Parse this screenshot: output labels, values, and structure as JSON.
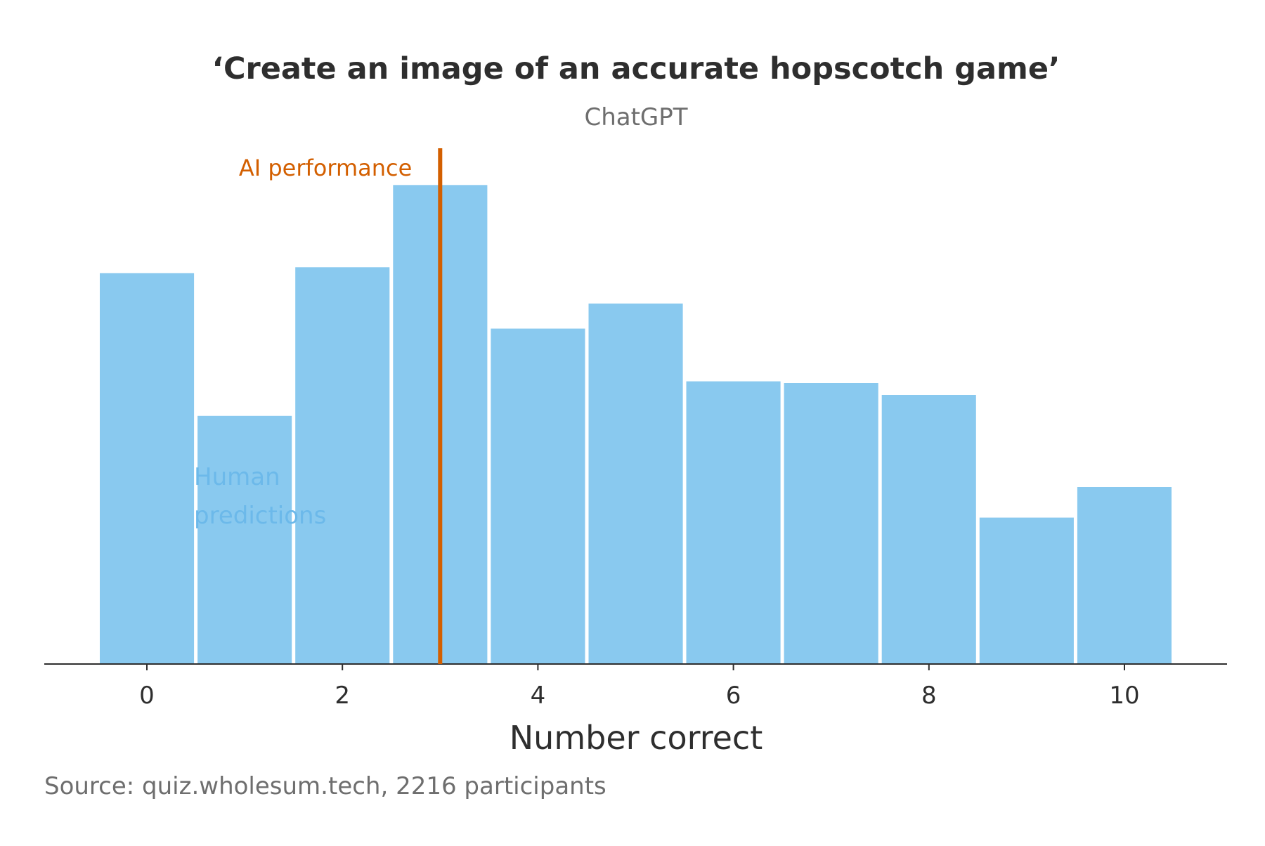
{
  "chart_data": {
    "type": "bar",
    "title": "‘Create an image of an accurate hopscotch game’",
    "subtitle": "ChatGPT",
    "xlabel": "Number correct",
    "ylabel": "",
    "categories": [
      0,
      1,
      2,
      3,
      4,
      5,
      6,
      7,
      8,
      9,
      10
    ],
    "series": [
      {
        "name": "Human predictions",
        "values": [
          0.1236,
          0.0785,
          0.1255,
          0.1515,
          0.1061,
          0.114,
          0.0894,
          0.0889,
          0.0851,
          0.0463,
          0.056
        ]
      }
    ],
    "x_ticks": [
      0,
      2,
      4,
      6,
      8,
      10
    ],
    "xlim": [
      -1.05,
      11.05
    ],
    "ylim": [
      0,
      0.16
    ],
    "y_axis_visible": false,
    "grid": false,
    "reference_line": {
      "label": "AI performance",
      "x": 3
    },
    "colors": {
      "bars": "#89c9ef",
      "human_label": "#6cb9ea",
      "ai_line": "#d35f00",
      "title": "#2e2e2e",
      "subtitle": "#6e6e6e",
      "axis": "#2e2e2e",
      "source": "#6e6e6e"
    },
    "source": "Source: quiz.wholesum.tech, 2216 participants"
  }
}
